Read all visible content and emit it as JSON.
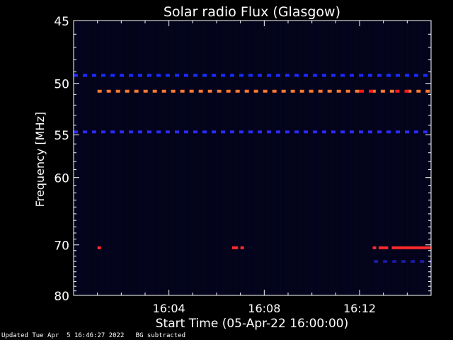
{
  "chart_data": {
    "type": "heatmap",
    "title": "Solar radio Flux (Glasgow)",
    "ylabel": "Frequency [MHz]",
    "xlabel": "Start Time (05-Apr-22 16:00:00)",
    "y_ticks": [
      45,
      50,
      55,
      60,
      70,
      80
    ],
    "x_ticks": [
      "16:04",
      "16:08",
      "16:12"
    ],
    "x_tick_minutes": [
      4,
      8,
      12
    ],
    "xlim_minutes": [
      0,
      15
    ],
    "y_axis_scale": "reciprocal",
    "ylim_mhz": [
      45,
      80
    ],
    "background_color": "#000000",
    "bands": [
      {
        "freq_mhz": 49.3,
        "color": "#1a2cff",
        "pattern": "dashed",
        "segments": [
          [
            0.0,
            15.0
          ]
        ]
      },
      {
        "freq_mhz": 50.7,
        "color": "#ff7a32",
        "pattern": "dashed",
        "segments": [
          [
            1.0,
            12.1
          ],
          [
            12.5,
            13.5
          ],
          [
            14.0,
            15.0
          ]
        ]
      },
      {
        "freq_mhz": 50.7,
        "color": "#ff1a1a",
        "pattern": "dashed",
        "segments": [
          [
            12.0,
            12.6
          ],
          [
            13.5,
            14.1
          ]
        ]
      },
      {
        "freq_mhz": 54.7,
        "color": "#2a2aff",
        "pattern": "dashed",
        "segments": [
          [
            0.0,
            15.0
          ]
        ]
      },
      {
        "freq_mhz": 70.5,
        "color": "#ff2a2a",
        "pattern": "solid",
        "segments": [
          [
            1.0,
            1.15
          ],
          [
            6.65,
            6.9
          ],
          [
            7.0,
            7.15
          ],
          [
            12.55,
            12.7
          ],
          [
            12.8,
            13.2
          ],
          [
            13.35,
            15.0
          ]
        ]
      },
      {
        "freq_mhz": 73.0,
        "color": "#1a1aa0",
        "pattern": "dashed",
        "segments": [
          [
            12.6,
            15.0
          ]
        ]
      }
    ]
  },
  "footer": {
    "updated": "Updated Tue Apr  5 16:46:27 2022",
    "note": "BG subtracted"
  }
}
